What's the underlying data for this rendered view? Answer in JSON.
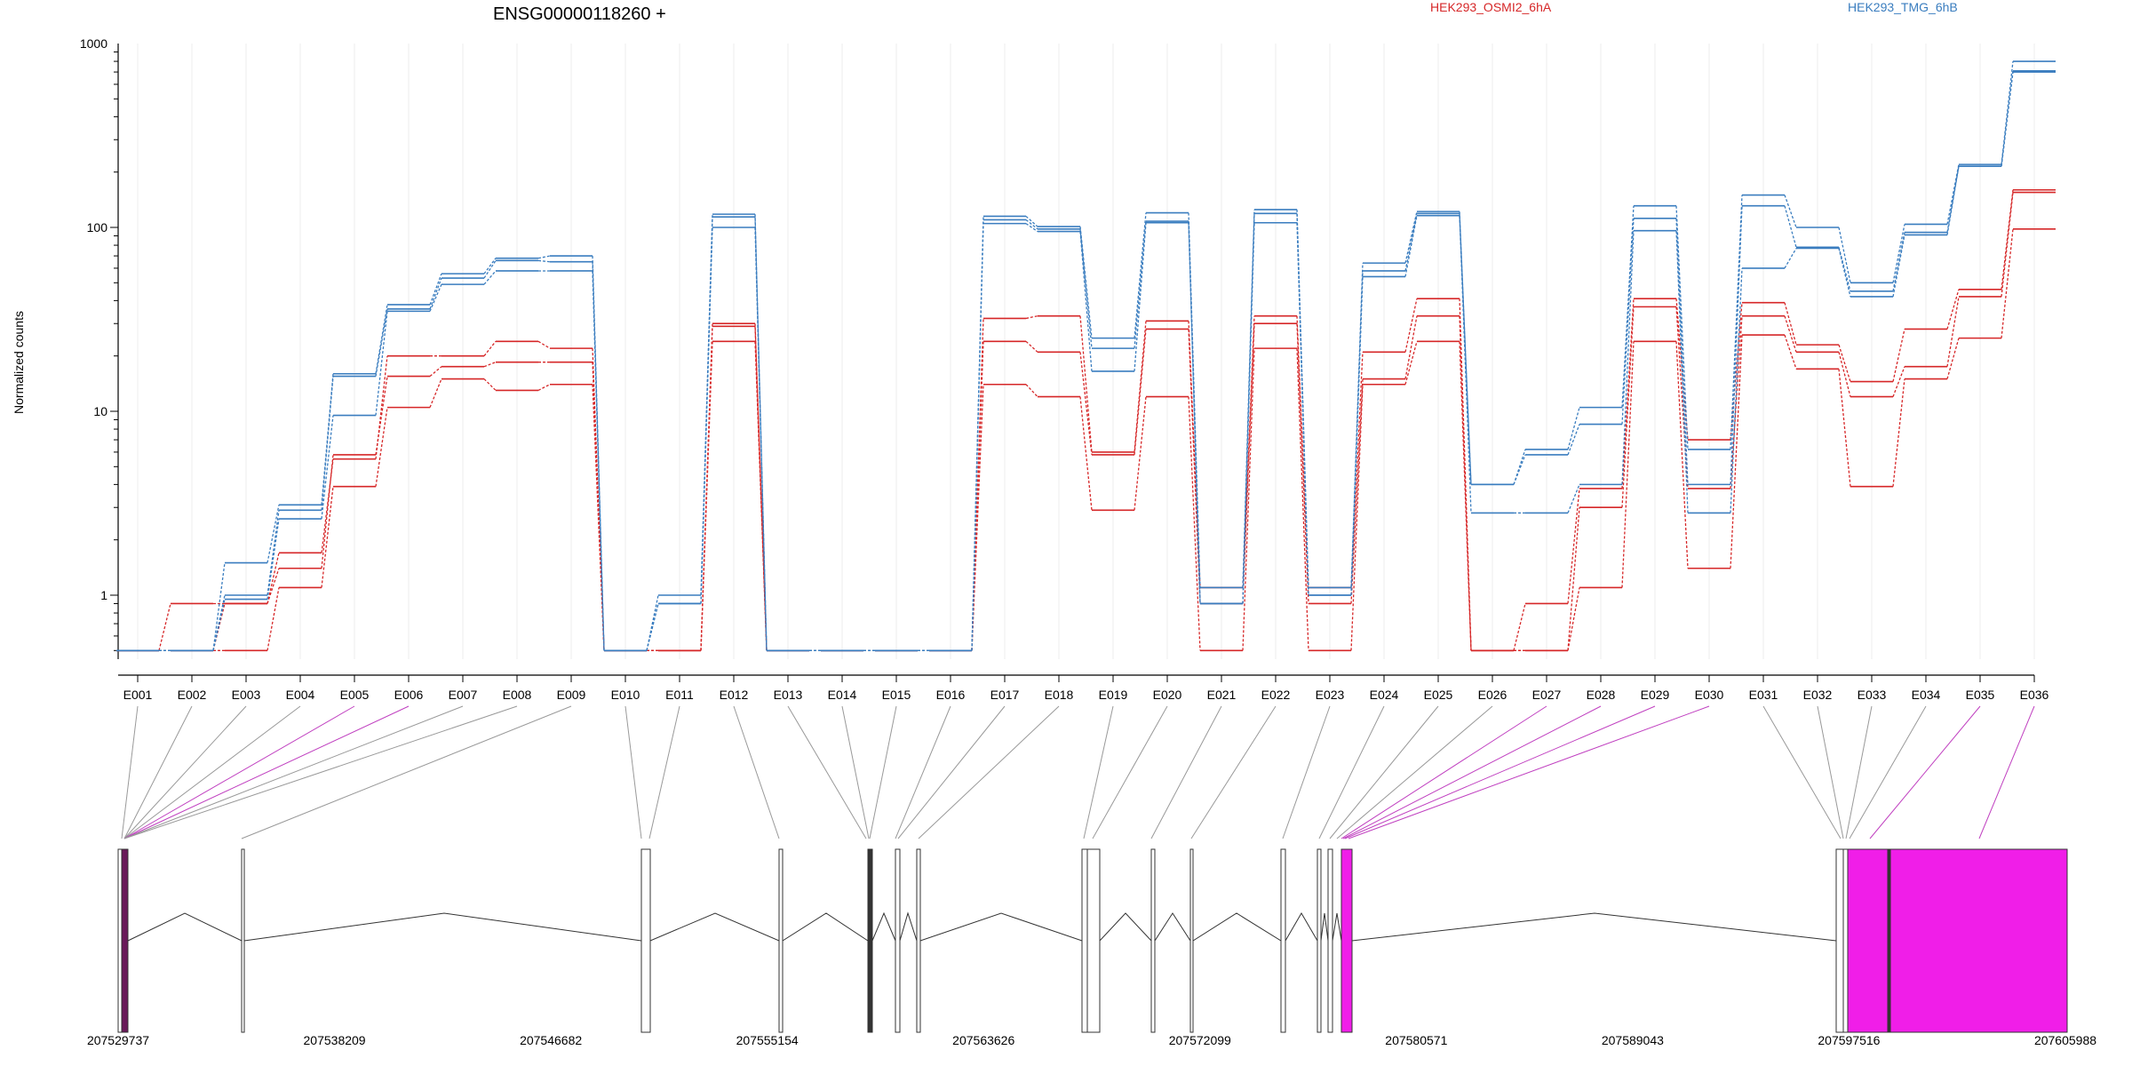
{
  "chart_data": {
    "type": "line",
    "title": "ENSG00000118260 +",
    "ylabel": "Normalized counts",
    "yscale": "log",
    "ylim": [
      0.5,
      1000
    ],
    "yticks": [
      {
        "value": 1,
        "label": "1"
      },
      {
        "value": 10,
        "label": "10"
      },
      {
        "value": 100,
        "label": "100"
      },
      {
        "value": 1000,
        "label": "1000"
      }
    ],
    "categories": [
      "E001",
      "E002",
      "E003",
      "E004",
      "E005",
      "E006",
      "E007",
      "E008",
      "E009",
      "E010",
      "E011",
      "E012",
      "E013",
      "E014",
      "E015",
      "E016",
      "E017",
      "E018",
      "E019",
      "E020",
      "E021",
      "E022",
      "E023",
      "E024",
      "E025",
      "E026",
      "E027",
      "E028",
      "E029",
      "E030",
      "E031",
      "E032",
      "E033",
      "E034",
      "E035",
      "E036"
    ],
    "legend": [
      {
        "name": "HEK293_OSMI2_6hA",
        "color": "#d62728"
      },
      {
        "name": "HEK293_TMG_6hB",
        "color": "#3a7dbf"
      }
    ],
    "series": [
      {
        "group": "HEK293_OSMI2_6hA",
        "color": "#d62728",
        "values": [
          0.5,
          0.9,
          0.9,
          1.7,
          5.5,
          20,
          20,
          24,
          22,
          0.5,
          0.5,
          30,
          0.5,
          0.5,
          0.5,
          0.5,
          32,
          33,
          6,
          31,
          1.1,
          33,
          1.1,
          21,
          41,
          0.5,
          0.9,
          3.8,
          41,
          7,
          39,
          23,
          14.5,
          28,
          46,
          160
        ]
      },
      {
        "group": "HEK293_OSMI2_6hA",
        "color": "#d62728",
        "values": [
          0.5,
          0.5,
          0.9,
          1.4,
          5.8,
          15.5,
          17.5,
          18.5,
          18.5,
          0.5,
          0.5,
          29,
          0.5,
          0.5,
          0.5,
          0.5,
          24,
          21,
          5.8,
          28,
          0.9,
          30,
          0.9,
          15,
          33,
          0.5,
          0.5,
          3.0,
          37,
          3.8,
          33,
          21,
          12,
          17.5,
          42,
          155
        ]
      },
      {
        "group": "HEK293_OSMI2_6hA",
        "color": "#d62728",
        "values": [
          0.5,
          0.5,
          0.5,
          1.1,
          3.9,
          10.5,
          15,
          13,
          14,
          0.5,
          0.5,
          24,
          0.5,
          0.5,
          0.5,
          0.5,
          14,
          12,
          2.9,
          12,
          0.5,
          22,
          0.5,
          14,
          24,
          0.5,
          0.5,
          1.1,
          24,
          1.4,
          26,
          17,
          3.9,
          15,
          25,
          98
        ]
      },
      {
        "group": "HEK293_TMG_6hB",
        "color": "#3a7dbf",
        "values": [
          0.5,
          0.5,
          1.5,
          3.1,
          16,
          38,
          56,
          68,
          70,
          0.5,
          1.0,
          118,
          0.5,
          0.5,
          0.5,
          0.5,
          115,
          101,
          25,
          120,
          1.1,
          125,
          1.1,
          64,
          122,
          4.0,
          6.2,
          10.5,
          131,
          6.2,
          150,
          100,
          50,
          104,
          220,
          800
        ]
      },
      {
        "group": "HEK293_TMG_6hB",
        "color": "#3a7dbf",
        "values": [
          0.5,
          0.5,
          1.0,
          2.9,
          15.5,
          36,
          53,
          66,
          65,
          0.5,
          0.9,
          114,
          0.5,
          0.5,
          0.5,
          0.5,
          110,
          98,
          22,
          108,
          0.9,
          119,
          1.0,
          58,
          119,
          4.0,
          5.8,
          8.5,
          112,
          4.0,
          131,
          78,
          45,
          94,
          215,
          710
        ]
      },
      {
        "group": "HEK293_TMG_6hB",
        "color": "#3a7dbf",
        "values": [
          0.5,
          0.5,
          0.95,
          2.6,
          9.5,
          35,
          49,
          58,
          58,
          0.5,
          0.9,
          100,
          0.5,
          0.5,
          0.5,
          0.5,
          105,
          95,
          16.5,
          106,
          0.9,
          106,
          1.0,
          54,
          116,
          2.8,
          2.8,
          4.0,
          96,
          2.8,
          60,
          77,
          42,
          91,
          215,
          700
        ]
      }
    ],
    "genomic_ticks": [
      "207529737",
      "207538209",
      "207546682",
      "207555154",
      "207563626",
      "207572099",
      "207580571",
      "207589043",
      "207597516",
      "207605988"
    ]
  }
}
